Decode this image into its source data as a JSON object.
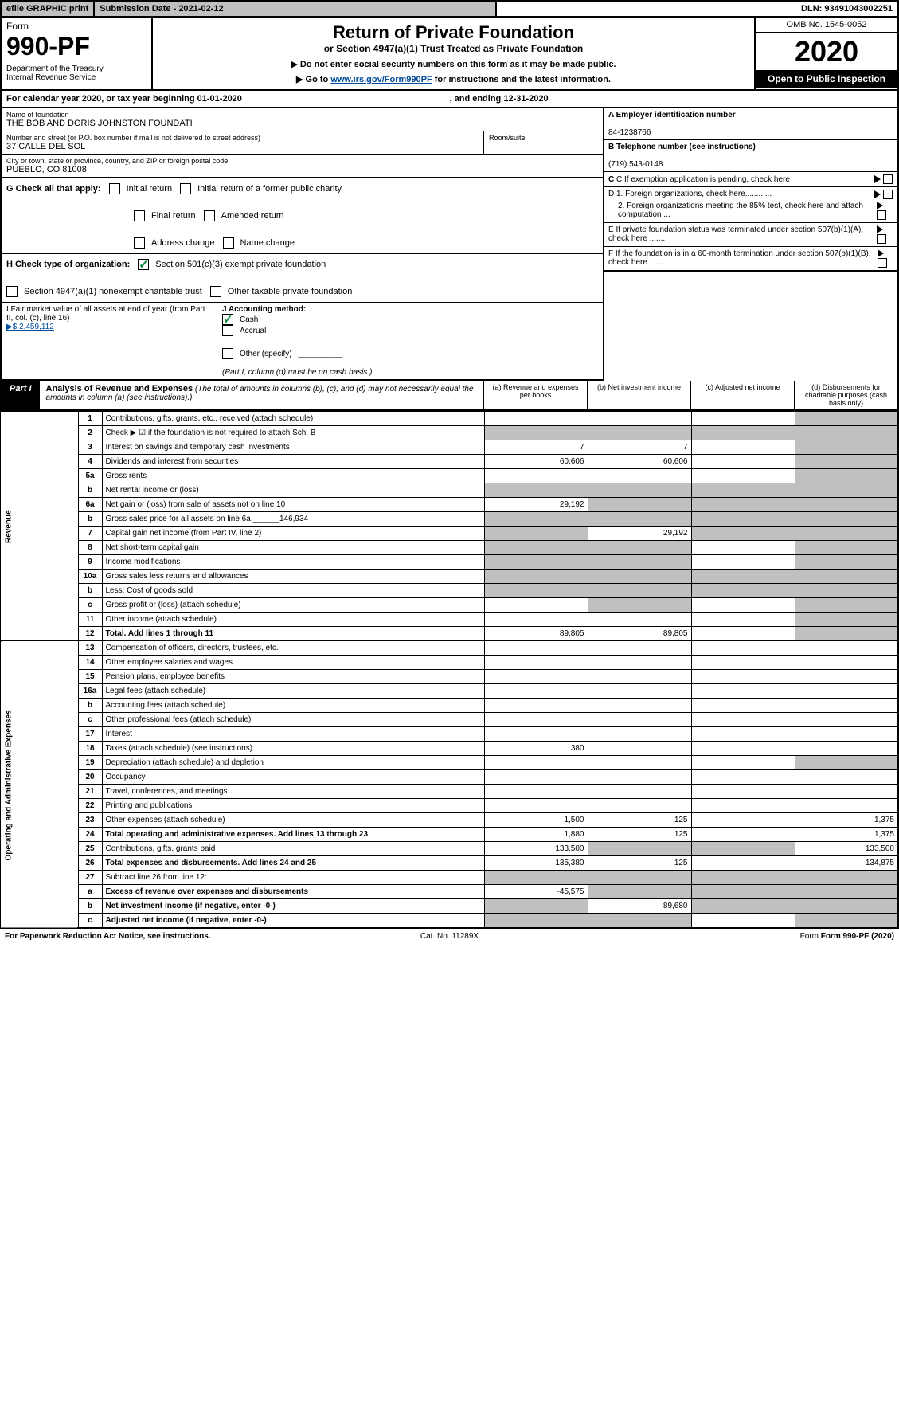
{
  "topbar": {
    "efile": "efile GRAPHIC print",
    "subdate": "Submission Date - 2021-02-12",
    "dln": "DLN: 93491043002251"
  },
  "header": {
    "form": "Form",
    "num": "990-PF",
    "dept": "Department of the Treasury\nInternal Revenue Service",
    "title": "Return of Private Foundation",
    "sub": "or Section 4947(a)(1) Trust Treated as Private Foundation",
    "inst1": "▶ Do not enter social security numbers on this form as it may be made public.",
    "inst2": "▶ Go to ",
    "instlink": "www.irs.gov/Form990PF",
    "inst3": " for instructions and the latest information.",
    "omb": "OMB No. 1545-0052",
    "year": "2020",
    "open": "Open to Public Inspection"
  },
  "calyear": {
    "a": "For calendar year 2020, or tax year beginning 01-01-2020",
    "b": ", and ending 12-31-2020"
  },
  "entity": {
    "name_lbl": "Name of foundation",
    "name": "THE BOB AND DORIS JOHNSTON FOUNDATI",
    "addr_lbl": "Number and street (or P.O. box number if mail is not delivered to street address)",
    "addr": "37 CALLE DEL SOL",
    "room_lbl": "Room/suite",
    "city_lbl": "City or town, state or province, country, and ZIP or foreign postal code",
    "city": "PUEBLO, CO  81008",
    "ein_lbl": "A Employer identification number",
    "ein": "84-1238766",
    "tel_lbl": "B Telephone number (see instructions)",
    "tel": "(719) 543-0148",
    "c": "C  If exemption application is pending, check here",
    "d1": "D 1. Foreign organizations, check here............",
    "d2": "2. Foreign organizations meeting the 85% test, check here and attach computation ...",
    "e": "E  If private foundation status was terminated under section 507(b)(1)(A), check here .......",
    "f": "F  If the foundation is in a 60-month termination under section 507(b)(1)(B), check here .......",
    "g": "G Check all that apply:",
    "g_init": "Initial return",
    "g_initf": "Initial return of a former public charity",
    "g_final": "Final return",
    "g_amend": "Amended return",
    "g_addr": "Address change",
    "g_name": "Name change",
    "h": "H Check type of organization:",
    "h1": "Section 501(c)(3) exempt private foundation",
    "h2": "Section 4947(a)(1) nonexempt charitable trust",
    "h3": "Other taxable private foundation",
    "i": "I Fair market value of all assets at end of year (from Part II, col. (c), line 16)",
    "ival": "▶$  2,459,112",
    "j": "J Accounting method:",
    "j_cash": "Cash",
    "j_acc": "Accrual",
    "j_oth": "Other (specify)",
    "j_note": "(Part I, column (d) must be on cash basis.)"
  },
  "part1": {
    "lbl": "Part I",
    "title": "Analysis of Revenue and Expenses",
    "note": " (The total of amounts in columns (b), (c), and (d) may not necessarily equal the amounts in column (a) (see instructions).)",
    "cols": {
      "a": "(a) Revenue and expenses per books",
      "b": "(b) Net investment income",
      "c": "(c) Adjusted net income",
      "d": "(d) Disbursements for charitable purposes (cash basis only)"
    }
  },
  "side": {
    "rev": "Revenue",
    "exp": "Operating and Administrative Expenses"
  },
  "rows": [
    {
      "ln": "1",
      "desc": "Contributions, gifts, grants, etc., received (attach schedule)",
      "a": "",
      "b": "",
      "c": "",
      "d": "shade"
    },
    {
      "ln": "2",
      "desc": "Check ▶ ☑ if the foundation is not required to attach Sch. B",
      "a": "shade",
      "b": "shade",
      "c": "shade",
      "d": "shade"
    },
    {
      "ln": "3",
      "desc": "Interest on savings and temporary cash investments",
      "a": "7",
      "b": "7",
      "c": "",
      "d": "shade"
    },
    {
      "ln": "4",
      "desc": "Dividends and interest from securities",
      "a": "60,606",
      "b": "60,606",
      "c": "",
      "d": "shade"
    },
    {
      "ln": "5a",
      "desc": "Gross rents",
      "a": "",
      "b": "",
      "c": "",
      "d": "shade"
    },
    {
      "ln": "b",
      "desc": "Net rental income or (loss)",
      "a": "shade",
      "b": "shade",
      "c": "shade",
      "d": "shade"
    },
    {
      "ln": "6a",
      "desc": "Net gain or (loss) from sale of assets not on line 10",
      "a": "29,192",
      "b": "shade",
      "c": "shade",
      "d": "shade"
    },
    {
      "ln": "b",
      "desc": "Gross sales price for all assets on line 6a ______146,934",
      "a": "shade",
      "b": "shade",
      "c": "shade",
      "d": "shade"
    },
    {
      "ln": "7",
      "desc": "Capital gain net income (from Part IV, line 2)",
      "a": "shade",
      "b": "29,192",
      "c": "shade",
      "d": "shade"
    },
    {
      "ln": "8",
      "desc": "Net short-term capital gain",
      "a": "shade",
      "b": "shade",
      "c": "",
      "d": "shade"
    },
    {
      "ln": "9",
      "desc": "Income modifications",
      "a": "shade",
      "b": "shade",
      "c": "",
      "d": "shade"
    },
    {
      "ln": "10a",
      "desc": "Gross sales less returns and allowances",
      "a": "shade",
      "b": "shade",
      "c": "shade",
      "d": "shade"
    },
    {
      "ln": "b",
      "desc": "Less: Cost of goods sold",
      "a": "shade",
      "b": "shade",
      "c": "shade",
      "d": "shade"
    },
    {
      "ln": "c",
      "desc": "Gross profit or (loss) (attach schedule)",
      "a": "",
      "b": "shade",
      "c": "",
      "d": "shade"
    },
    {
      "ln": "11",
      "desc": "Other income (attach schedule)",
      "a": "",
      "b": "",
      "c": "",
      "d": "shade"
    },
    {
      "ln": "12",
      "desc": "Total. Add lines 1 through 11",
      "a": "89,805",
      "b": "89,805",
      "c": "",
      "d": "shade",
      "bold": true
    },
    {
      "ln": "13",
      "desc": "Compensation of officers, directors, trustees, etc.",
      "a": "",
      "b": "",
      "c": "",
      "d": ""
    },
    {
      "ln": "14",
      "desc": "Other employee salaries and wages",
      "a": "",
      "b": "",
      "c": "",
      "d": ""
    },
    {
      "ln": "15",
      "desc": "Pension plans, employee benefits",
      "a": "",
      "b": "",
      "c": "",
      "d": ""
    },
    {
      "ln": "16a",
      "desc": "Legal fees (attach schedule)",
      "a": "",
      "b": "",
      "c": "",
      "d": ""
    },
    {
      "ln": "b",
      "desc": "Accounting fees (attach schedule)",
      "a": "",
      "b": "",
      "c": "",
      "d": ""
    },
    {
      "ln": "c",
      "desc": "Other professional fees (attach schedule)",
      "a": "",
      "b": "",
      "c": "",
      "d": ""
    },
    {
      "ln": "17",
      "desc": "Interest",
      "a": "",
      "b": "",
      "c": "",
      "d": ""
    },
    {
      "ln": "18",
      "desc": "Taxes (attach schedule) (see instructions)",
      "a": "380",
      "b": "",
      "c": "",
      "d": ""
    },
    {
      "ln": "19",
      "desc": "Depreciation (attach schedule) and depletion",
      "a": "",
      "b": "",
      "c": "",
      "d": "shade"
    },
    {
      "ln": "20",
      "desc": "Occupancy",
      "a": "",
      "b": "",
      "c": "",
      "d": ""
    },
    {
      "ln": "21",
      "desc": "Travel, conferences, and meetings",
      "a": "",
      "b": "",
      "c": "",
      "d": ""
    },
    {
      "ln": "22",
      "desc": "Printing and publications",
      "a": "",
      "b": "",
      "c": "",
      "d": ""
    },
    {
      "ln": "23",
      "desc": "Other expenses (attach schedule)",
      "a": "1,500",
      "b": "125",
      "c": "",
      "d": "1,375"
    },
    {
      "ln": "24",
      "desc": "Total operating and administrative expenses. Add lines 13 through 23",
      "a": "1,880",
      "b": "125",
      "c": "",
      "d": "1,375",
      "bold": true
    },
    {
      "ln": "25",
      "desc": "Contributions, gifts, grants paid",
      "a": "133,500",
      "b": "shade",
      "c": "shade",
      "d": "133,500"
    },
    {
      "ln": "26",
      "desc": "Total expenses and disbursements. Add lines 24 and 25",
      "a": "135,380",
      "b": "125",
      "c": "",
      "d": "134,875",
      "bold": true
    },
    {
      "ln": "27",
      "desc": "Subtract line 26 from line 12:",
      "a": "shade",
      "b": "shade",
      "c": "shade",
      "d": "shade"
    },
    {
      "ln": "a",
      "desc": "Excess of revenue over expenses and disbursements",
      "a": "-45,575",
      "b": "shade",
      "c": "shade",
      "d": "shade",
      "bold": true
    },
    {
      "ln": "b",
      "desc": "Net investment income (if negative, enter -0-)",
      "a": "shade",
      "b": "89,680",
      "c": "shade",
      "d": "shade",
      "bold": true
    },
    {
      "ln": "c",
      "desc": "Adjusted net income (if negative, enter -0-)",
      "a": "shade",
      "b": "shade",
      "c": "",
      "d": "shade",
      "bold": true
    }
  ],
  "footer": {
    "l": "For Paperwork Reduction Act Notice, see instructions.",
    "m": "Cat. No. 11289X",
    "r": "Form 990-PF (2020)"
  }
}
